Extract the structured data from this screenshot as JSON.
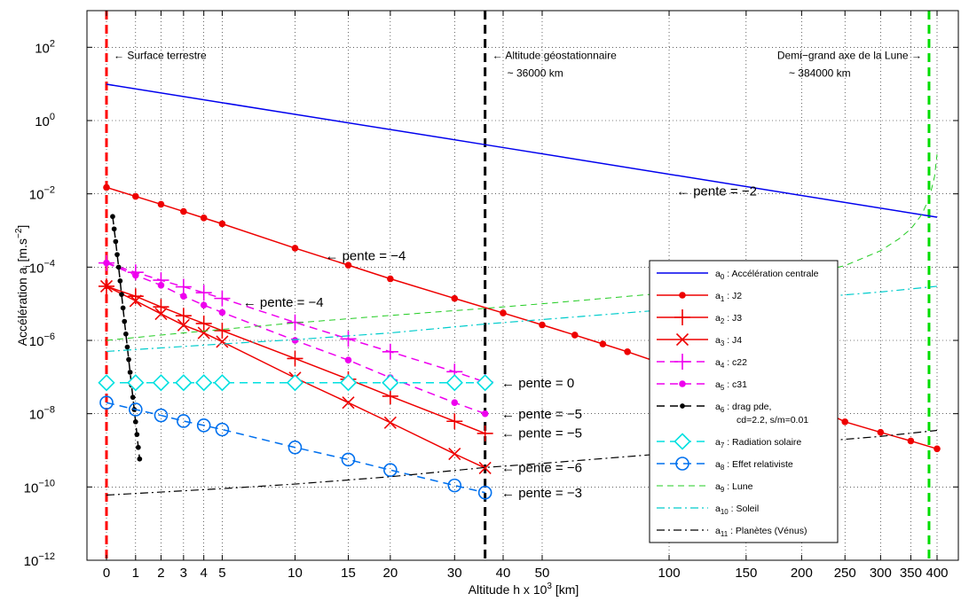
{
  "chart_data": {
    "type": "line",
    "xlabel": "Altitude h x 10",
    "xlabel_sup": "3",
    "xlabel_unit": " [km]",
    "ylabel": "Accélération a",
    "ylabel_sub": "i",
    "ylabel_unit": " [m.s",
    "ylabel_sup": "−2",
    "ylabel_end": "]",
    "x_scale": "log(1+h/6.378)",
    "y_scale": "log",
    "xlim": [
      0,
      418
    ],
    "ylim": [
      1e-12,
      1000
    ],
    "grid": true,
    "legend_position": "bottom-right",
    "x_ticks": [
      {
        "v": 0,
        "label": "0"
      },
      {
        "v": 1,
        "label": "1"
      },
      {
        "v": 2,
        "label": "2"
      },
      {
        "v": 3,
        "label": "3"
      },
      {
        "v": 4,
        "label": "4"
      },
      {
        "v": 5,
        "label": "5"
      },
      {
        "v": 10,
        "label": "10"
      },
      {
        "v": 15,
        "label": "15"
      },
      {
        "v": 20,
        "label": "20"
      },
      {
        "v": 30,
        "label": "30"
      },
      {
        "v": 40,
        "label": "40"
      },
      {
        "v": 50,
        "label": "50"
      },
      {
        "v": 100,
        "label": "100"
      },
      {
        "v": 150,
        "label": "150"
      },
      {
        "v": 200,
        "label": "200"
      },
      {
        "v": 250,
        "label": "250"
      },
      {
        "v": 300,
        "label": "300"
      },
      {
        "v": 350,
        "label": "350"
      },
      {
        "v": 400,
        "label": "400"
      }
    ],
    "y_ticks": [
      {
        "exp": -12,
        "base": "10",
        "sup": "−12"
      },
      {
        "exp": -10,
        "base": "10",
        "sup": "−10"
      },
      {
        "exp": -8,
        "base": "10",
        "sup": "−8"
      },
      {
        "exp": -6,
        "base": "10",
        "sup": "−6"
      },
      {
        "exp": -4,
        "base": "10",
        "sup": "−4"
      },
      {
        "exp": -2,
        "base": "10",
        "sup": "−2"
      },
      {
        "exp": 0,
        "base": "10",
        "sup": "0"
      },
      {
        "exp": 2,
        "base": "10",
        "sup": "2"
      }
    ],
    "vlines": [
      {
        "x": 0,
        "color": "#ff0000"
      },
      {
        "x": 36,
        "color": "#000000"
      },
      {
        "x": 384,
        "color": "#00dd00"
      }
    ],
    "series": [
      {
        "key": "a0",
        "color": "#0000ee",
        "dash": "",
        "marker": "none",
        "points": [
          [
            0,
            9.8
          ],
          [
            36,
            0.22
          ],
          [
            400,
            0.0023
          ]
        ]
      },
      {
        "key": "a1",
        "color": "#ee0000",
        "dash": "",
        "marker": "dot",
        "points": [
          [
            0,
            0.015
          ],
          [
            1,
            0.0085
          ],
          [
            2,
            0.0052
          ],
          [
            3,
            0.0033
          ],
          [
            4,
            0.0022
          ],
          [
            5,
            0.00152
          ],
          [
            10,
            0.00033
          ],
          [
            15,
            0.000113
          ],
          [
            20,
            4.8e-05
          ],
          [
            30,
            1.4e-05
          ],
          [
            40,
            5.6e-06
          ],
          [
            50,
            2.65e-06
          ],
          [
            60,
            1.4e-06
          ],
          [
            70,
            8e-07
          ],
          [
            80,
            4.9e-07
          ],
          [
            100,
            2e-07
          ],
          [
            150,
            5.9e-08
          ],
          [
            200,
            2.2e-08
          ],
          [
            250,
            6e-09
          ],
          [
            300,
            3.1e-09
          ],
          [
            350,
            1.8e-09
          ],
          [
            400,
            1.1e-09
          ]
        ]
      },
      {
        "key": "a2",
        "color": "#ee0000",
        "dash": "",
        "marker": "plus",
        "points": [
          [
            0,
            3e-05
          ],
          [
            1,
            1.6e-05
          ],
          [
            2,
            8.2e-06
          ],
          [
            3,
            4.7e-06
          ],
          [
            4,
            2.9e-06
          ],
          [
            5,
            1.85e-06
          ],
          [
            10,
            3.2e-07
          ],
          [
            15,
            8.7e-08
          ],
          [
            20,
            3e-08
          ],
          [
            30,
            6.2e-09
          ],
          [
            36,
            2.9e-09
          ]
        ]
      },
      {
        "key": "a3",
        "color": "#ee0000",
        "dash": "",
        "marker": "x",
        "points": [
          [
            0,
            3e-05
          ],
          [
            1,
            1.2e-05
          ],
          [
            2,
            5.3e-06
          ],
          [
            3,
            2.6e-06
          ],
          [
            4,
            1.6e-06
          ],
          [
            5,
            9.2e-07
          ],
          [
            10,
            9.5e-08
          ],
          [
            15,
            2e-08
          ],
          [
            20,
            5.7e-09
          ],
          [
            30,
            8e-10
          ],
          [
            36,
            3.3e-10
          ]
        ]
      },
      {
        "key": "a4",
        "color": "#ee00ee",
        "dash": "9 6",
        "marker": "plus",
        "points": [
          [
            0,
            0.00013
          ],
          [
            1,
            7.2e-05
          ],
          [
            2,
            4.4e-05
          ],
          [
            3,
            2.9e-05
          ],
          [
            4,
            2e-05
          ],
          [
            5,
            1.4e-05
          ],
          [
            10,
            3.1e-06
          ],
          [
            15,
            1.1e-06
          ],
          [
            20,
            4.9e-07
          ],
          [
            30,
            1.4e-07
          ],
          [
            36,
            7.3e-08
          ]
        ]
      },
      {
        "key": "a5",
        "color": "#ee00ee",
        "dash": "9 6",
        "marker": "dot",
        "points": [
          [
            0,
            0.00013
          ],
          [
            1,
            6e-05
          ],
          [
            2,
            3.2e-05
          ],
          [
            3,
            1.6e-05
          ],
          [
            4,
            9.2e-06
          ],
          [
            5,
            5.8e-06
          ],
          [
            10,
            1e-06
          ],
          [
            15,
            2.9e-07
          ],
          [
            20,
            9.6e-08
          ],
          [
            30,
            2e-08
          ],
          [
            36,
            1e-08
          ]
        ]
      },
      {
        "key": "a6",
        "color": "#000000",
        "dash": "9 6",
        "marker": "dot",
        "points": [
          [
            0.2,
            0.0024
          ],
          [
            0.25,
            0.0011
          ],
          [
            0.3,
            0.0005
          ],
          [
            0.35,
            0.00022
          ],
          [
            0.4,
            0.0001
          ],
          [
            0.45,
            4.2e-05
          ],
          [
            0.5,
            1.8e-05
          ],
          [
            0.55,
            7.7e-06
          ],
          [
            0.6,
            3.3e-06
          ],
          [
            0.65,
            1.5e-06
          ],
          [
            0.7,
            6.6e-07
          ],
          [
            0.75,
            3e-07
          ],
          [
            0.8,
            1.35e-07
          ],
          [
            0.85,
            6e-08
          ],
          [
            0.9,
            2.8e-08
          ],
          [
            0.95,
            1.3e-08
          ],
          [
            1.0,
            6e-09
          ],
          [
            1.05,
            2.7e-09
          ],
          [
            1.1,
            1.2e-09
          ],
          [
            1.15,
            5.8e-10
          ]
        ]
      },
      {
        "key": "a7",
        "color": "#00e0e0",
        "dash": "9 6",
        "marker": "diamond",
        "points": [
          [
            0,
            7e-08
          ],
          [
            1,
            7e-08
          ],
          [
            2,
            7e-08
          ],
          [
            3,
            7e-08
          ],
          [
            4,
            7e-08
          ],
          [
            5,
            7e-08
          ],
          [
            10,
            7e-08
          ],
          [
            15,
            7e-08
          ],
          [
            20,
            7e-08
          ],
          [
            30,
            7e-08
          ],
          [
            36,
            7e-08
          ]
        ]
      },
      {
        "key": "a8",
        "color": "#0070ee",
        "dash": "9 6",
        "marker": "circle",
        "points": [
          [
            0,
            2e-08
          ],
          [
            1,
            1.3e-08
          ],
          [
            2,
            9e-09
          ],
          [
            3,
            6.3e-09
          ],
          [
            4,
            4.8e-09
          ],
          [
            5,
            3.7e-09
          ],
          [
            10,
            1.2e-09
          ],
          [
            15,
            5.6e-10
          ],
          [
            20,
            2.9e-10
          ],
          [
            30,
            1.1e-10
          ],
          [
            36,
            7e-11
          ]
        ]
      },
      {
        "key": "a9",
        "color": "#22cc22",
        "dash": "7 5",
        "marker": "none",
        "width": 1,
        "points": [
          [
            0,
            1e-06
          ],
          [
            1,
            1.2e-06
          ],
          [
            3,
            1.6e-06
          ],
          [
            5,
            2e-06
          ],
          [
            10,
            3e-06
          ],
          [
            20,
            4.8e-06
          ],
          [
            36,
            7.5e-06
          ],
          [
            50,
            1e-05
          ],
          [
            100,
            2e-05
          ],
          [
            150,
            3.3e-05
          ],
          [
            200,
            5.8e-05
          ],
          [
            250,
            0.00011
          ],
          [
            300,
            0.00028
          ],
          [
            330,
            0.0006
          ],
          [
            350,
            0.0011
          ],
          [
            370,
            0.0027
          ],
          [
            385,
            0.008
          ],
          [
            395,
            0.03
          ],
          [
            400,
            0.12
          ]
        ]
      },
      {
        "key": "a10",
        "color": "#00cccc",
        "dash": "9 4 2 4",
        "marker": "none",
        "width": 1.2,
        "points": [
          [
            0,
            5e-07
          ],
          [
            5,
            8e-07
          ],
          [
            10,
            1.05e-06
          ],
          [
            20,
            1.6e-06
          ],
          [
            36,
            2.8e-06
          ],
          [
            50,
            3.7e-06
          ],
          [
            100,
            7e-06
          ],
          [
            200,
            1.4e-05
          ],
          [
            300,
            2.1e-05
          ],
          [
            400,
            3e-05
          ]
        ]
      },
      {
        "key": "a11",
        "color": "#000000",
        "dash": "9 4 2 4",
        "marker": "none",
        "width": 1.2,
        "points": [
          [
            0,
            6e-11
          ],
          [
            5,
            9e-11
          ],
          [
            10,
            1.2e-10
          ],
          [
            20,
            1.9e-10
          ],
          [
            36,
            3.4e-10
          ],
          [
            50,
            4.4e-10
          ],
          [
            100,
            8.3e-10
          ],
          [
            200,
            1.6e-09
          ],
          [
            300,
            2.4e-09
          ],
          [
            400,
            3.5e-09
          ]
        ]
      }
    ],
    "legend": [
      {
        "key": "a0",
        "sym": "a",
        "sub": "0",
        "label": " : Accélération centrale"
      },
      {
        "key": "a1",
        "sym": "a",
        "sub": "1",
        "label": " : J2"
      },
      {
        "key": "a2",
        "sym": "a",
        "sub": "2",
        "label": " : J3"
      },
      {
        "key": "a3",
        "sym": "a",
        "sub": "3",
        "label": " : J4"
      },
      {
        "key": "a4",
        "sym": "a",
        "sub": "4",
        "label": " : c22"
      },
      {
        "key": "a5",
        "sym": "a",
        "sub": "5",
        "label": " : c31"
      },
      {
        "key": "a6",
        "sym": "a",
        "sub": "6",
        "label": " : drag pde,",
        "label2": "cd=2.2, s/m=0.01"
      },
      {
        "key": "a7",
        "sym": "a",
        "sub": "7",
        "label": " : Radiation solaire"
      },
      {
        "key": "a8",
        "sym": "a",
        "sub": "8",
        "label": " : Effet relativiste"
      },
      {
        "key": "a9",
        "sym": "a",
        "sub": "9",
        "label": " : Lune"
      },
      {
        "key": "a10",
        "sym": "a",
        "sub": "10",
        "label": " : Soleil"
      },
      {
        "key": "a11",
        "sym": "a",
        "sub": "11",
        "label": " : Planètes (Vénus)"
      }
    ],
    "annotations": [
      {
        "name": "surface-annotation",
        "x": 0,
        "y": 60,
        "size": 12,
        "lines": [
          "← Surface terrestre"
        ]
      },
      {
        "name": "geostationary-annotation",
        "x": 36,
        "y": 60,
        "size": 12,
        "lines": [
          "← Altitude géostationnaire",
          "~ 36000 km"
        ]
      },
      {
        "name": "moon-axis-annotation",
        "x": 384,
        "y": 60,
        "size": 12,
        "anchor": "end",
        "lines": [
          "Demi−grand axe de la Lune →",
          "~ 384000 km"
        ]
      },
      {
        "name": "slope-a0-label",
        "x": 100,
        "y": 0.012,
        "size": 15,
        "lines": [
          "← pente = −2"
        ]
      },
      {
        "name": "slope-a1-label",
        "x": 12,
        "y": 0.00021,
        "size": 15,
        "lines": [
          "← pente = −4"
        ]
      },
      {
        "name": "slope-a4-label",
        "x": 5.8,
        "y": 1.1e-05,
        "size": 15,
        "lines": [
          "← pente = −4"
        ]
      },
      {
        "name": "slope-a7-label",
        "x": 38,
        "y": 7e-08,
        "size": 15,
        "lines": [
          "← pente = 0"
        ]
      },
      {
        "name": "slope-a5-label",
        "x": 38,
        "y": 1e-08,
        "size": 15,
        "lines": [
          "← pente = −5"
        ]
      },
      {
        "name": "slope-a2-label",
        "x": 38,
        "y": 3e-09,
        "size": 15,
        "lines": [
          "← pente = −5"
        ]
      },
      {
        "name": "slope-a3-label",
        "x": 38,
        "y": 3.4e-10,
        "size": 15,
        "lines": [
          "← pente = −6"
        ]
      },
      {
        "name": "slope-a8-label",
        "x": 38,
        "y": 7e-11,
        "size": 15,
        "lines": [
          "← pente = −3"
        ]
      }
    ]
  }
}
